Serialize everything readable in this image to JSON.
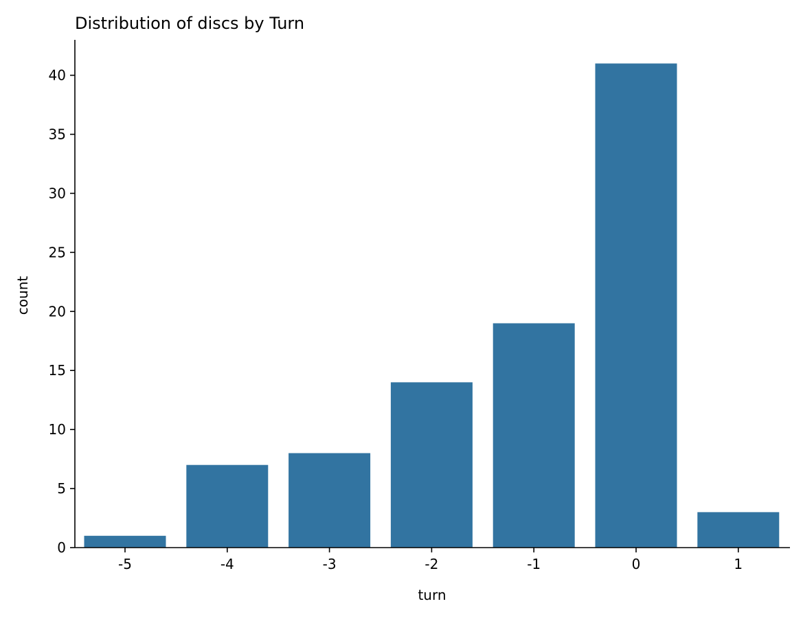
{
  "chart_data": {
    "type": "bar",
    "title": "Distribution of discs by Turn",
    "xlabel": "turn",
    "ylabel": "count",
    "categories": [
      "-5",
      "-4",
      "-3",
      "-2",
      "-1",
      "0",
      "1"
    ],
    "values": [
      1,
      7,
      8,
      14,
      19,
      41,
      3
    ],
    "ylim": [
      0,
      43
    ],
    "yticks": [
      0,
      5,
      10,
      15,
      20,
      25,
      30,
      35,
      40
    ],
    "grid": false,
    "bar_color": "#3274a1",
    "axis_color": "#000000"
  }
}
